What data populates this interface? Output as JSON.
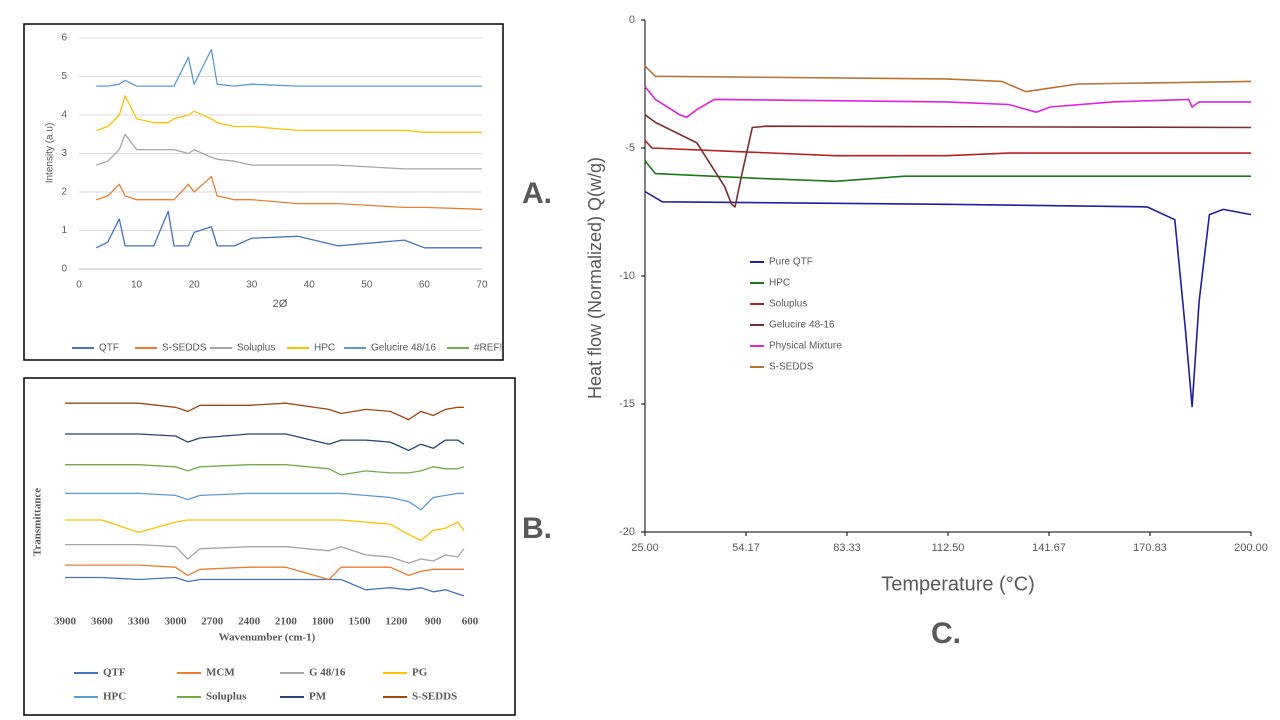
{
  "chart_data": [
    {
      "type": "line",
      "panel_label": "A.",
      "x_label": "2Ø",
      "y_label": "Intensity (a.u)",
      "xlim": [
        0,
        70
      ],
      "xticks": [
        0,
        10,
        20,
        30,
        40,
        50,
        60,
        70
      ],
      "ylim": [
        0,
        6
      ],
      "yticks": [
        0,
        1,
        2,
        3,
        4,
        5,
        6
      ],
      "grid": true,
      "x": [
        3,
        5,
        7,
        8,
        10,
        13,
        15.5,
        16.5,
        19,
        20,
        23,
        24,
        27,
        30,
        38,
        45,
        56.5,
        60,
        70
      ],
      "series": [
        {
          "name": "QTF",
          "color": "#4472c4",
          "values": [
            0.55,
            0.7,
            1.3,
            0.6,
            0.6,
            0.6,
            1.5,
            0.6,
            0.6,
            0.95,
            1.1,
            0.6,
            0.6,
            0.8,
            0.85,
            0.6,
            0.75,
            0.55,
            0.55
          ]
        },
        {
          "name": "S-SEDDS",
          "color": "#ed7d31",
          "values": [
            1.8,
            1.9,
            2.2,
            1.9,
            1.8,
            1.8,
            1.8,
            1.8,
            2.2,
            2.0,
            2.4,
            1.9,
            1.8,
            1.8,
            1.7,
            1.7,
            1.6,
            1.6,
            1.55
          ]
        },
        {
          "name": "Soluplus",
          "color": "#a5a5a5",
          "values": [
            2.7,
            2.8,
            3.1,
            3.5,
            3.1,
            3.1,
            3.1,
            3.1,
            3.0,
            3.1,
            2.9,
            2.85,
            2.8,
            2.7,
            2.7,
            2.7,
            2.6,
            2.6,
            2.6
          ]
        },
        {
          "name": "HPC",
          "color": "#ffc000",
          "values": [
            3.6,
            3.7,
            4.0,
            4.5,
            3.9,
            3.8,
            3.8,
            3.9,
            4.0,
            4.1,
            3.9,
            3.8,
            3.7,
            3.7,
            3.6,
            3.6,
            3.6,
            3.55,
            3.55
          ]
        },
        {
          "name": "Gelucire 48/16",
          "color": "#5b9bd5",
          "values": [
            4.75,
            4.75,
            4.8,
            4.9,
            4.75,
            4.75,
            4.75,
            4.75,
            5.5,
            4.8,
            5.7,
            4.8,
            4.75,
            4.8,
            4.75,
            4.75,
            4.75,
            4.75,
            4.75
          ]
        },
        {
          "name": "#REF!",
          "color": "#70ad47",
          "values": [
            null,
            null,
            null,
            null,
            null,
            null,
            null,
            null,
            null,
            null,
            null,
            null,
            null,
            null,
            null,
            null,
            null,
            null,
            null
          ]
        }
      ]
    },
    {
      "type": "line",
      "panel_label": "B.",
      "x_label": "Wavenumber  (cm-1)",
      "y_label": "Transmittance",
      "xlim": [
        3900,
        600
      ],
      "xticks": [
        3900,
        3600,
        3300,
        3000,
        2700,
        2400,
        2100,
        1800,
        1500,
        1200,
        900,
        600
      ],
      "ylim": [
        0,
        10
      ],
      "grid": false,
      "x": [
        3900,
        3600,
        3300,
        3000,
        2900,
        2800,
        2400,
        2100,
        1750,
        1650,
        1450,
        1250,
        1100,
        1000,
        900,
        800,
        700,
        650
      ],
      "series": [
        {
          "name": "QTF",
          "color": "#4472c4",
          "values": [
            1.1,
            1.1,
            1.0,
            1.1,
            0.9,
            1.0,
            1.0,
            1.0,
            1.0,
            1.0,
            0.5,
            0.6,
            0.5,
            0.6,
            0.4,
            0.5,
            0.3,
            0.2
          ]
        },
        {
          "name": "MCM",
          "color": "#ed7d31",
          "values": [
            1.7,
            1.7,
            1.7,
            1.6,
            1.2,
            1.5,
            1.6,
            1.6,
            1.0,
            1.6,
            1.6,
            1.6,
            1.2,
            1.4,
            1.5,
            1.5,
            1.5,
            1.5
          ]
        },
        {
          "name": "G 48/16",
          "color": "#a5a5a5",
          "values": [
            2.7,
            2.7,
            2.7,
            2.6,
            2.0,
            2.5,
            2.6,
            2.6,
            2.4,
            2.6,
            2.2,
            2.1,
            1.8,
            2.0,
            1.9,
            2.2,
            2.1,
            2.5
          ]
        },
        {
          "name": "PG",
          "color": "#ffc000",
          "values": [
            3.9,
            3.9,
            3.3,
            3.8,
            3.9,
            3.9,
            3.9,
            3.9,
            3.9,
            3.9,
            3.8,
            3.7,
            3.2,
            2.9,
            3.4,
            3.5,
            3.8,
            3.4
          ]
        },
        {
          "name": "HPC",
          "color": "#5b9bd5",
          "values": [
            5.2,
            5.2,
            5.2,
            5.1,
            4.9,
            5.1,
            5.2,
            5.2,
            5.2,
            5.2,
            5.1,
            5.0,
            4.8,
            4.4,
            5.0,
            5.1,
            5.2,
            5.2
          ]
        },
        {
          "name": "Soluplus",
          "color": "#70ad47",
          "values": [
            6.6,
            6.6,
            6.6,
            6.5,
            6.3,
            6.5,
            6.6,
            6.6,
            6.4,
            6.1,
            6.3,
            6.2,
            6.2,
            6.3,
            6.5,
            6.4,
            6.4,
            6.5
          ]
        },
        {
          "name": "PM",
          "color": "#264478",
          "values": [
            8.1,
            8.1,
            8.1,
            8.0,
            7.7,
            7.9,
            8.1,
            8.1,
            7.6,
            7.8,
            7.8,
            7.7,
            7.3,
            7.6,
            7.4,
            7.8,
            7.8,
            7.6
          ]
        },
        {
          "name": "S-SEDDS",
          "color": "#9e480e",
          "values": [
            9.6,
            9.6,
            9.6,
            9.4,
            9.2,
            9.5,
            9.5,
            9.6,
            9.3,
            9.1,
            9.3,
            9.2,
            8.8,
            9.2,
            9.0,
            9.3,
            9.4,
            9.4
          ]
        }
      ]
    },
    {
      "type": "line",
      "panel_label": "C.",
      "x_label": "Temperature (°C)",
      "y_label": "Heat flow (Normalized) Q(w/g)",
      "xlim": [
        25,
        200
      ],
      "xticks": [
        {
          "value": 25,
          "label": "25.00"
        },
        {
          "value": 54.17,
          "label": "54.17"
        },
        {
          "value": 83.33,
          "label": "83.33"
        },
        {
          "value": 112.5,
          "label": "112.50"
        },
        {
          "value": 141.67,
          "label": "141.67"
        },
        {
          "value": 170.83,
          "label": "170.83"
        },
        {
          "value": 200,
          "label": "200.00"
        }
      ],
      "ylim": [
        -20,
        0
      ],
      "yticks": [
        0,
        -5,
        -10,
        -15,
        -20
      ],
      "grid": false,
      "series": [
        {
          "name": "Pure QTF",
          "color": "#1f1f9f",
          "x": [
            25,
            30,
            112,
            170,
            178,
            181,
            183,
            185,
            188,
            192,
            200
          ],
          "values": [
            -6.7,
            -7.1,
            -7.2,
            -7.3,
            -7.8,
            -12,
            -15.1,
            -11,
            -7.6,
            -7.4,
            -7.6
          ]
        },
        {
          "name": "HPC",
          "color": "#1a7a1a",
          "x": [
            25,
            28,
            60,
            80,
            100,
            200
          ],
          "values": [
            -5.5,
            -6.0,
            -6.2,
            -6.3,
            -6.1,
            -6.1
          ]
        },
        {
          "name": "Soluplus",
          "color": "#b22222",
          "x": [
            25,
            27,
            80,
            112,
            130,
            200
          ],
          "values": [
            -4.7,
            -5.0,
            -5.3,
            -5.3,
            -5.2,
            -5.2
          ]
        },
        {
          "name": "Gelucire 48-16",
          "color": "#7b2c2c",
          "x": [
            25,
            28,
            40,
            48,
            50,
            51,
            53,
            56,
            60,
            200
          ],
          "values": [
            -3.7,
            -4.0,
            -4.8,
            -6.5,
            -7.2,
            -7.3,
            -6.0,
            -4.2,
            -4.15,
            -4.2
          ]
        },
        {
          "name": "Physical Mixture",
          "color": "#e020e0",
          "x": [
            25,
            28,
            35,
            37,
            40,
            45,
            112,
            130,
            138,
            142,
            160,
            182,
            183,
            185,
            200
          ],
          "values": [
            -2.6,
            -3.1,
            -3.7,
            -3.8,
            -3.5,
            -3.1,
            -3.2,
            -3.3,
            -3.6,
            -3.4,
            -3.2,
            -3.1,
            -3.4,
            -3.2,
            -3.2
          ]
        },
        {
          "name": "S-SEDDS",
          "color": "#b87333",
          "x": [
            25,
            28,
            112,
            128,
            135,
            140,
            150,
            200
          ],
          "values": [
            -1.8,
            -2.2,
            -2.3,
            -2.4,
            -2.8,
            -2.7,
            -2.5,
            -2.4
          ]
        }
      ]
    }
  ]
}
